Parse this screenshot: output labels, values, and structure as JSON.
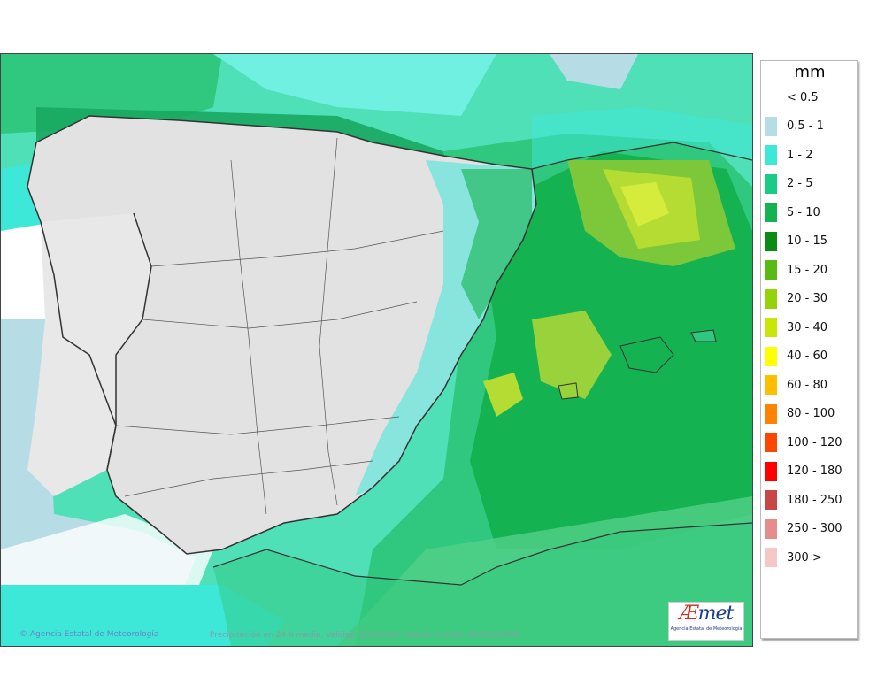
{
  "legend": {
    "unit": "mm",
    "entries": [
      {
        "label": "< 0.5",
        "color": ""
      },
      {
        "label": "0.5 - 1",
        "color": "#b6dde6"
      },
      {
        "label": "1 - 2",
        "color": "#3ee8d8"
      },
      {
        "label": "2 - 5",
        "color": "#19cc86"
      },
      {
        "label": "5 - 10",
        "color": "#14b250"
      },
      {
        "label": "10 - 15",
        "color": "#0a8c14"
      },
      {
        "label": "15 - 20",
        "color": "#5aba14"
      },
      {
        "label": "20 - 30",
        "color": "#96d20a"
      },
      {
        "label": "30 - 40",
        "color": "#c8e60a"
      },
      {
        "label": "40 - 60",
        "color": "#ffff00"
      },
      {
        "label": "60 - 80",
        "color": "#ffbe00"
      },
      {
        "label": "80 - 100",
        "color": "#ff8200"
      },
      {
        "label": "100 - 120",
        "color": "#ff4600"
      },
      {
        "label": "120 - 180",
        "color": "#ff0000"
      },
      {
        "label": "180 - 250",
        "color": "#c84646"
      },
      {
        "label": "250 - 300",
        "color": "#e68c8c"
      },
      {
        "label": "300 >",
        "color": "#f5c8c8"
      }
    ]
  },
  "footer": {
    "credit": "Agencia Estatal de Meteorología",
    "caption": "Precipitación en 24 h media. Validez: 20251225 Pasada modelo: 2025122400"
  },
  "logo": {
    "wordmark_a": "Æ",
    "wordmark_b": "met",
    "subtitle": "Agencia Estatal de Meteorología"
  },
  "colors": {
    "sea_base": "#4fe0b8",
    "land_dry": "#e6e6e6",
    "border": "#333333"
  }
}
